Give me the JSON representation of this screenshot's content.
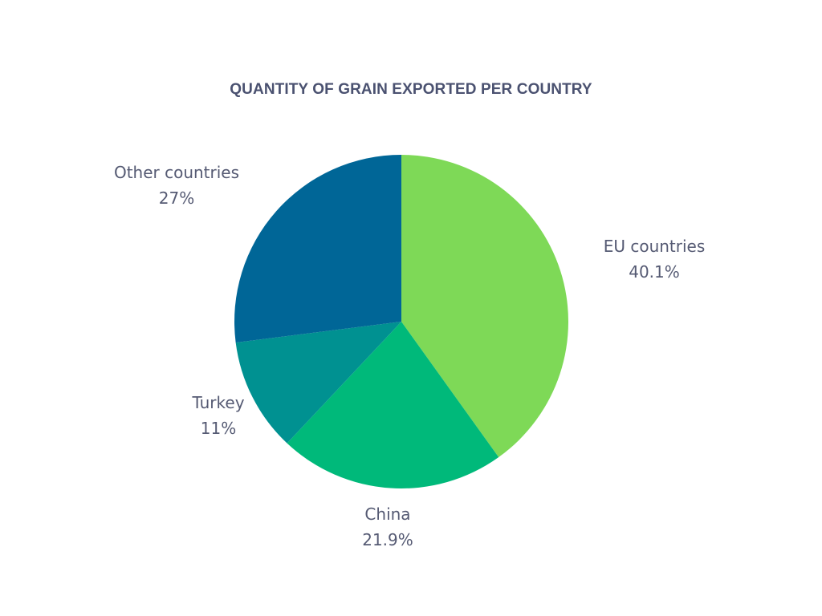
{
  "chart_data": {
    "type": "pie",
    "title": "QUANTITY OF GRAIN EXPORTED PER COUNTRY",
    "slices": [
      {
        "label": "EU countries",
        "value": 40.1,
        "display": "40.1%",
        "color": "#7ed957"
      },
      {
        "label": "China",
        "value": 21.9,
        "display": "21.9%",
        "color": "#00b97a"
      },
      {
        "label": "Turkey",
        "value": 11,
        "display": "11%",
        "color": "#009191"
      },
      {
        "label": "Other countries",
        "value": 27,
        "display": "27%",
        "color": "#006697"
      }
    ]
  }
}
